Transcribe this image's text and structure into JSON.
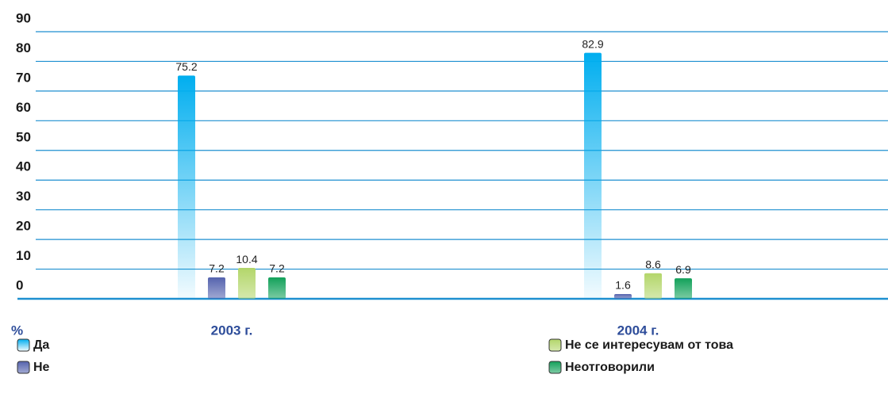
{
  "chart_data": {
    "type": "bar",
    "y_label": "%",
    "categories": [
      "2003 г.",
      "2004 г."
    ],
    "series": [
      {
        "name": "Да",
        "color": "#00aeef",
        "values": [
          75.2,
          82.9
        ]
      },
      {
        "name": "Не",
        "color": "#5563ae",
        "values": [
          7.2,
          1.6
        ]
      },
      {
        "name": "Не се интересувам от това",
        "color": "#b3d66a",
        "values": [
          10.4,
          8.6
        ]
      },
      {
        "name": "Неотговорили",
        "color": "#12a15a",
        "values": [
          7.2,
          6.9
        ]
      }
    ],
    "ylim": [
      0,
      90
    ],
    "yticks": [
      0,
      10,
      20,
      30,
      40,
      50,
      60,
      70,
      80,
      90
    ],
    "grid": true,
    "legend": "bottom"
  }
}
